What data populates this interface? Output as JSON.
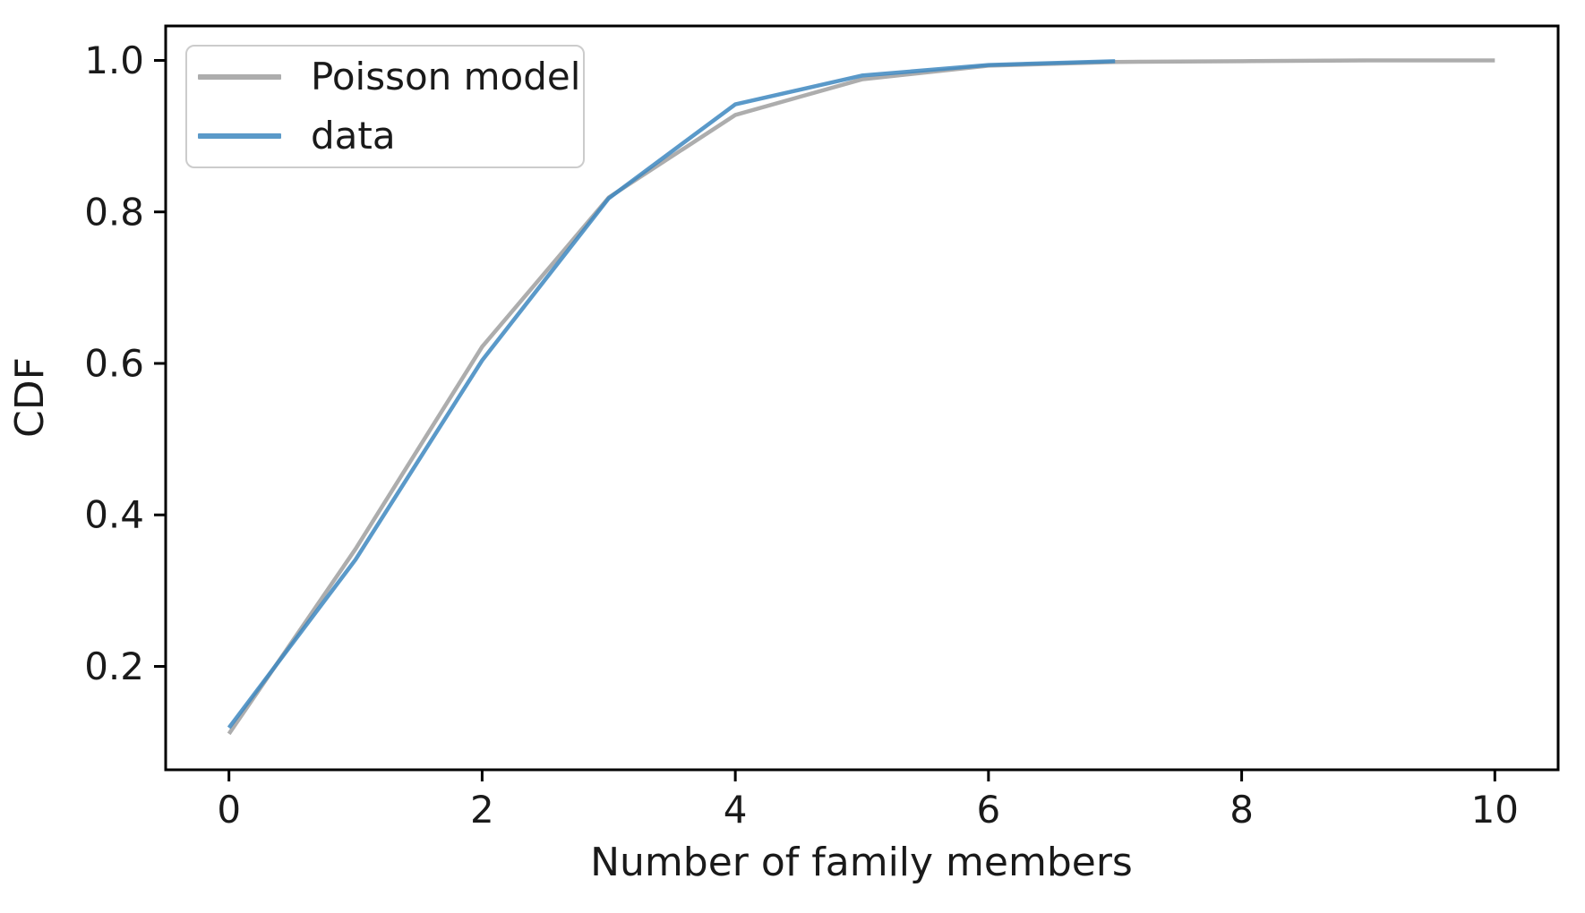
{
  "figure": {
    "background": "#ffffff",
    "spine_color": "#000000",
    "text_color": "#1a1a1a"
  },
  "legend": {
    "entries": [
      {
        "label": "Poisson model",
        "color": "#adadad"
      },
      {
        "label": "data",
        "color": "#5b9ac9"
      }
    ]
  },
  "chart_data": {
    "type": "line",
    "title": "",
    "xlabel": "Number of family members",
    "ylabel": "CDF",
    "xlim": [
      -0.5,
      10.5
    ],
    "ylim": [
      0.0635,
      1.0455
    ],
    "x_ticks": [
      0,
      2,
      4,
      6,
      8,
      10
    ],
    "y_ticks": [
      0.2,
      0.4,
      0.6,
      0.8,
      1.0
    ],
    "grid": false,
    "legend_position": "upper-left",
    "series": [
      {
        "name": "Poisson model",
        "color": "#adadad",
        "opacity": 1.0,
        "x": [
          0,
          1,
          2,
          3,
          4,
          5,
          6,
          7,
          8,
          9,
          10
        ],
        "values": [
          0.111,
          0.355,
          0.622,
          0.819,
          0.928,
          0.975,
          0.993,
          0.998,
          0.999,
          1.0,
          1.0
        ]
      },
      {
        "name": "data",
        "color": "#3d87c0",
        "opacity": 0.85,
        "x": [
          0,
          1,
          2,
          3,
          4,
          5,
          6,
          7
        ],
        "values": [
          0.119,
          0.341,
          0.604,
          0.818,
          0.942,
          0.98,
          0.994,
          0.999
        ]
      }
    ]
  }
}
